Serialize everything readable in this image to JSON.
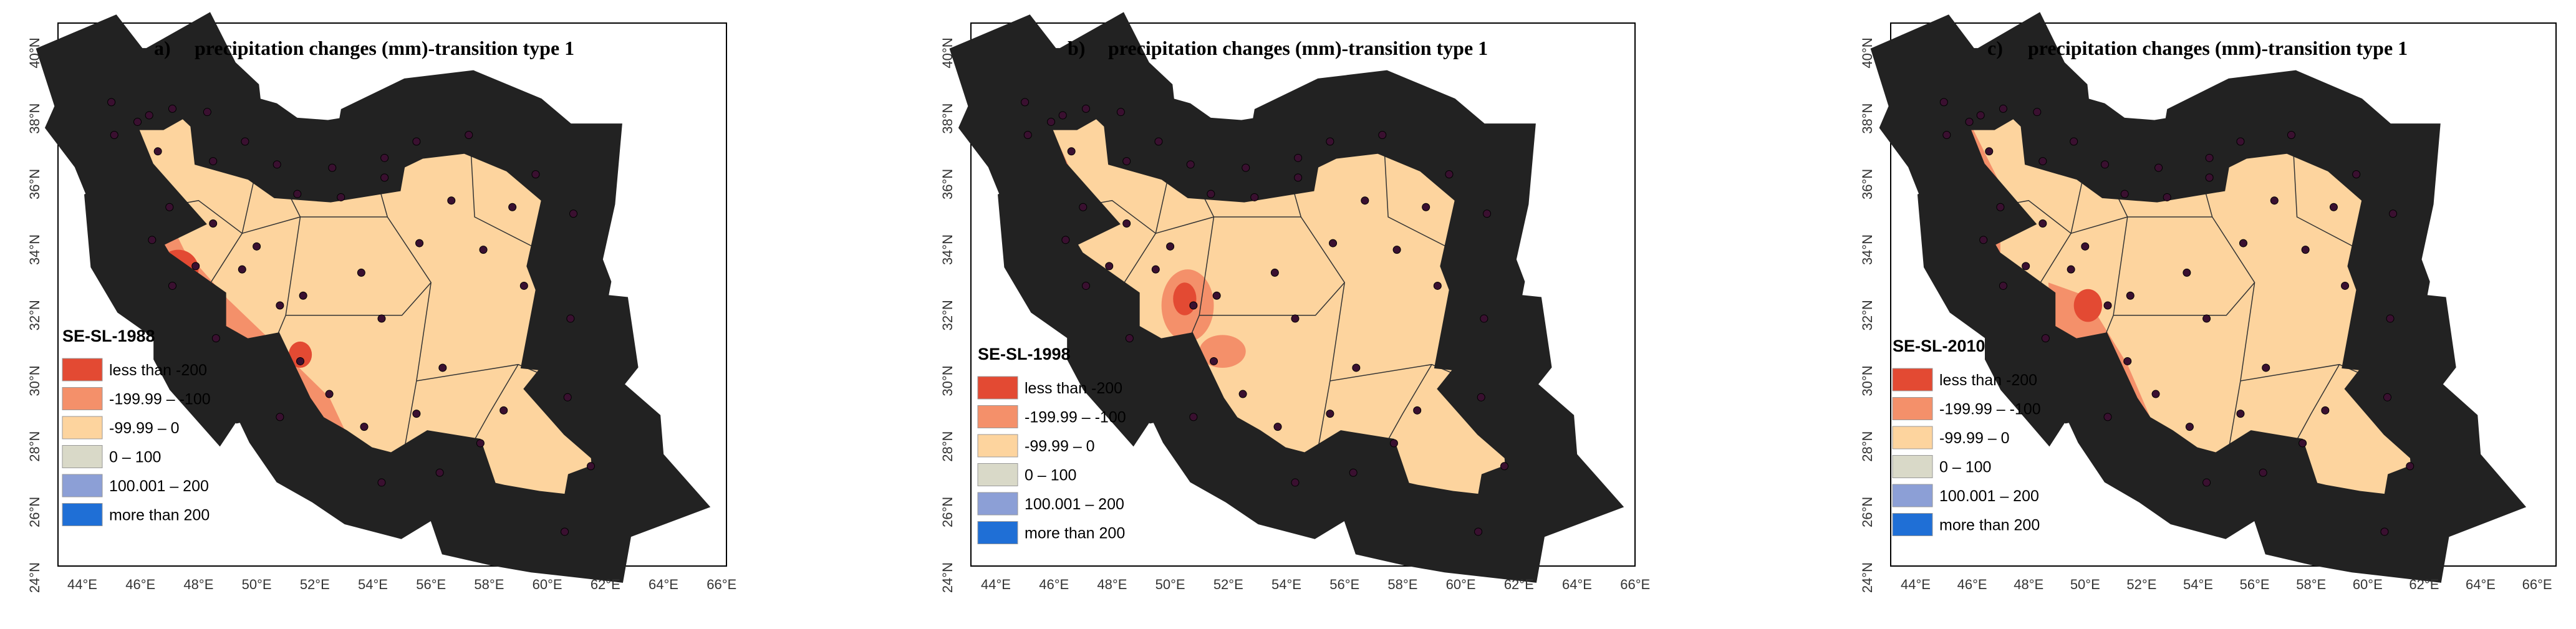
{
  "panels": [
    {
      "label": "a)",
      "title": "precipitation changes (mm)-transition type 1",
      "legend_title": "SE-SL-1988"
    },
    {
      "label": "b)",
      "title": "precipitation changes (mm)-transition type 1",
      "legend_title": "SE-SL-1998"
    },
    {
      "label": "c)",
      "title": "precipitation changes (mm)-transition type 1",
      "legend_title": "SE-SL-2010"
    }
  ],
  "legend": [
    {
      "label": "less than -200",
      "color": "#e34a33"
    },
    {
      "label": "-199.99 – -100",
      "color": "#f4906a"
    },
    {
      "label": "-99.99 – 0",
      "color": "#fdd49e"
    },
    {
      "label": "0 – 100",
      "color": "#d9d9c8"
    },
    {
      "label": "100.001 – 200",
      "color": "#8c9fd6"
    },
    {
      "label": "more than 200",
      "color": "#1f6fd6"
    }
  ],
  "lat_labels": [
    "24°N",
    "26°N",
    "28°N",
    "30°N",
    "32°N",
    "34°N",
    "36°N",
    "38°N",
    "40°N"
  ],
  "lon_labels": [
    "44°E",
    "46°E",
    "48°E",
    "50°E",
    "52°E",
    "54°E",
    "56°E",
    "58°E",
    "60°E",
    "62°E",
    "64°E",
    "66°E"
  ]
}
